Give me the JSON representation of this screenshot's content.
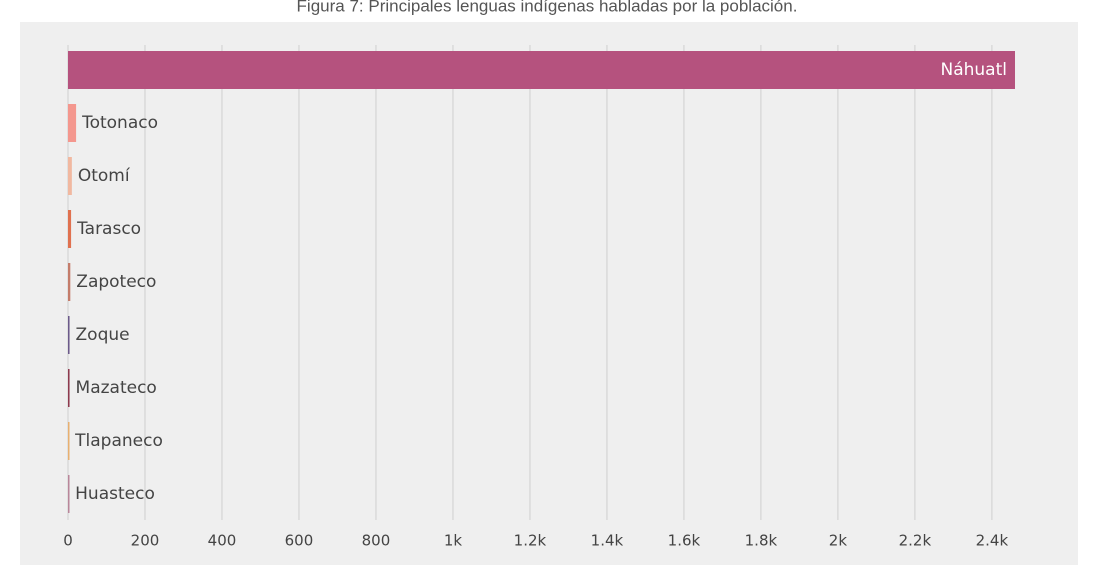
{
  "chart_data": {
    "type": "hbar",
    "title": "Figura 7: Principales lenguas indígenas habladas por la población.",
    "categories": [
      "Náhuatl",
      "Totonaco",
      "Otomí",
      "Tarasco",
      "Zapoteco",
      "Zoque",
      "Mazateco",
      "Tlapaneco",
      "Huasteco"
    ],
    "values": [
      2460,
      21,
      10,
      8,
      6,
      4,
      4,
      3,
      3
    ],
    "colors": [
      "#b5527e",
      "#f4978e",
      "#f1b8a0",
      "#e0714f",
      "#c47c6a",
      "#6b5a8a",
      "#8e3a4e",
      "#e8b070",
      "#b9869a"
    ],
    "xlim": [
      0,
      2460
    ],
    "xticks": [
      0,
      200,
      400,
      600,
      800,
      {
        "value": 1000,
        "label": "1k"
      },
      {
        "value": 1200,
        "label": "1.2k"
      },
      {
        "value": 1400,
        "label": "1.4k"
      },
      {
        "value": 1600,
        "label": "1.6k"
      },
      {
        "value": 1800,
        "label": "1.8k"
      },
      {
        "value": 2000,
        "label": "2k"
      },
      {
        "value": 2200,
        "label": "2.2k"
      },
      {
        "value": 2400,
        "label": "2.4k"
      }
    ],
    "grid": true
  }
}
